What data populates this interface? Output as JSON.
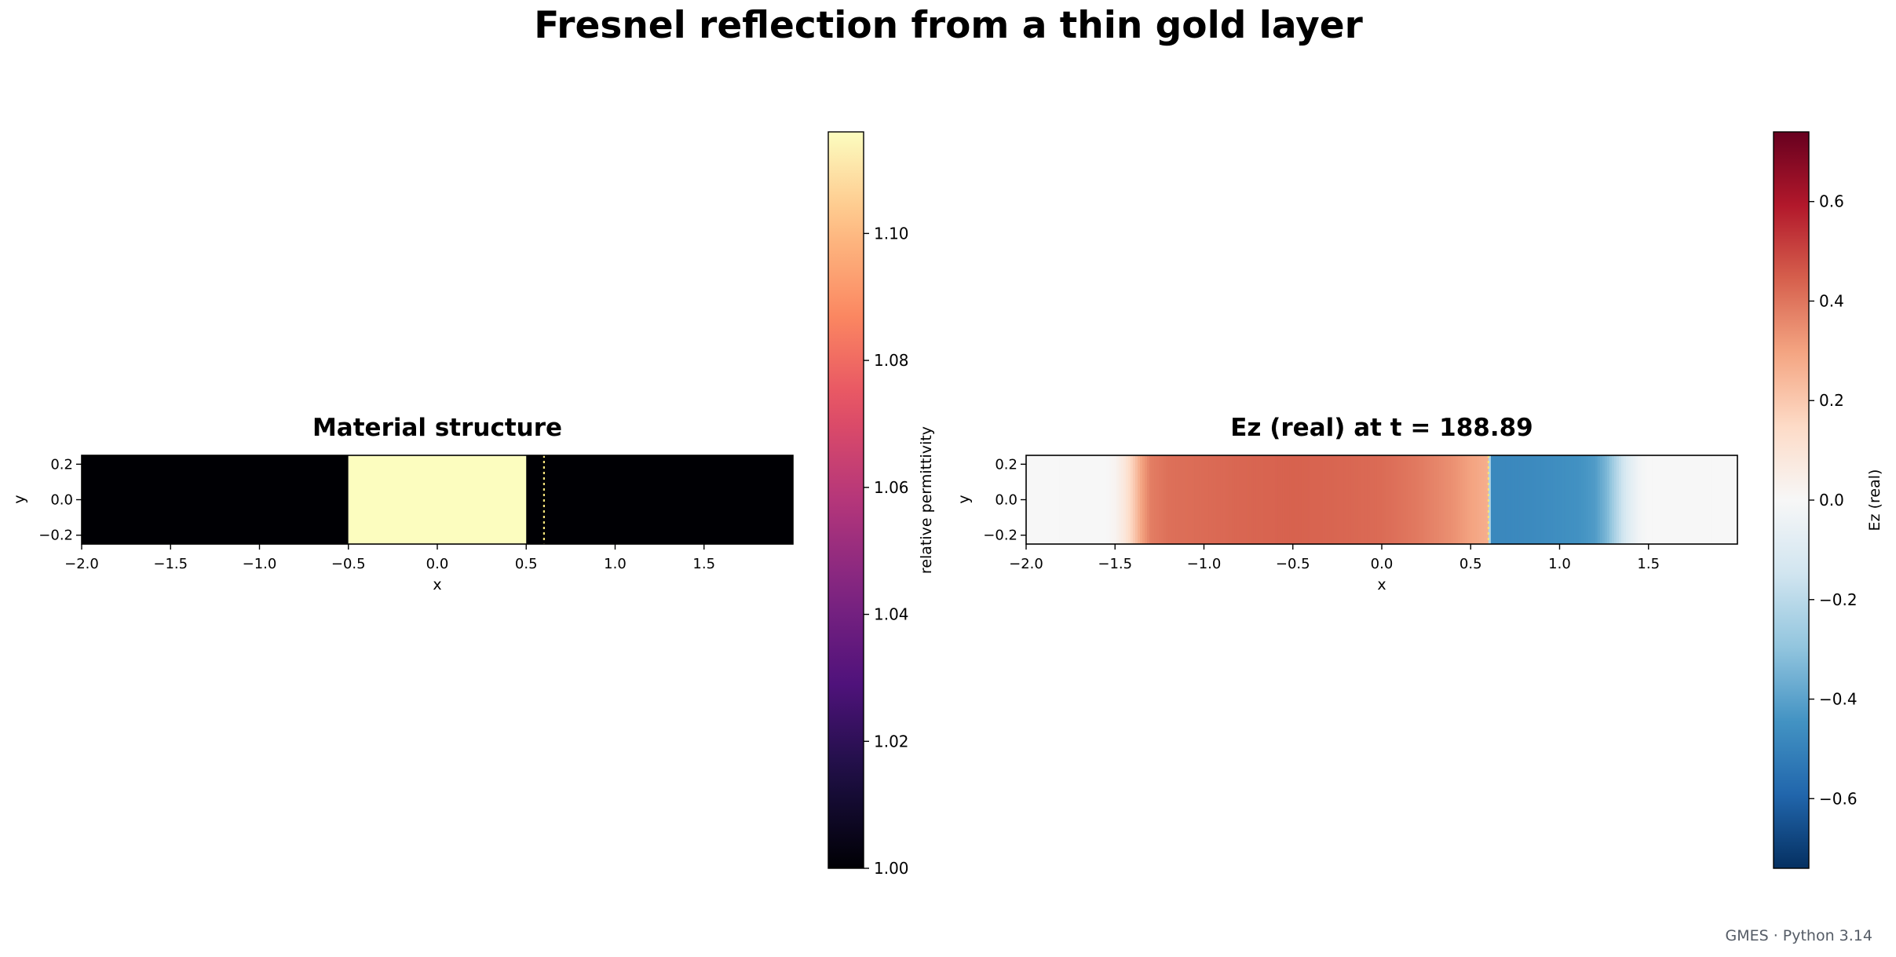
{
  "figure": {
    "title": "Fresnel reflection from a thin gold layer",
    "footer": "GMES · Python 3.14"
  },
  "chart_data": [
    {
      "type": "heatmap",
      "title": "Material structure",
      "xlabel": "x",
      "ylabel": "y",
      "xlim": [
        -2.0,
        2.0
      ],
      "ylim": [
        -0.25,
        0.25
      ],
      "xticks": [
        "−2.0",
        "−1.5",
        "−1.0",
        "−0.5",
        "0.0",
        "0.5",
        "1.0",
        "1.5"
      ],
      "xtick_values": [
        -2.0,
        -1.5,
        -1.0,
        -0.5,
        0.0,
        0.5,
        1.0,
        1.5
      ],
      "yticks": [
        "0.2",
        "0.0",
        "−0.2"
      ],
      "ytick_values": [
        0.2,
        0.0,
        -0.2
      ],
      "colormap": "magma",
      "regions": [
        {
          "x0": -2.0,
          "x1": -0.5,
          "value": 1.0
        },
        {
          "x0": -0.5,
          "x1": 0.5,
          "value": 1.116
        },
        {
          "x0": 0.5,
          "x1": 2.0,
          "value": 1.0
        }
      ],
      "marker_line_x": 0.6,
      "marker_line_style": "dotted",
      "marker_line_color": "#f5e27a",
      "colorbar": {
        "label": "relative permittivity",
        "range": [
          1.0,
          1.116
        ],
        "ticks": [
          "1.00",
          "1.02",
          "1.04",
          "1.06",
          "1.08",
          "1.10"
        ],
        "tick_values": [
          1.0,
          1.02,
          1.04,
          1.06,
          1.08,
          1.1
        ]
      }
    },
    {
      "type": "heatmap",
      "title": "Ez (real) at t = 188.89",
      "xlabel": "x",
      "ylabel": "y",
      "xlim": [
        -2.0,
        2.0
      ],
      "ylim": [
        -0.25,
        0.25
      ],
      "xticks": [
        "−2.0",
        "−1.5",
        "−1.0",
        "−0.5",
        "0.0",
        "0.5",
        "1.0",
        "1.5"
      ],
      "xtick_values": [
        -2.0,
        -1.5,
        -1.0,
        -0.5,
        0.0,
        0.5,
        1.0,
        1.5
      ],
      "yticks": [
        "0.2",
        "0.0",
        "−0.2"
      ],
      "ytick_values": [
        0.2,
        0.0,
        -0.2
      ],
      "colormap": "RdBu_r",
      "field_profile": {
        "x": [
          -2.0,
          -1.55,
          -1.5,
          -1.45,
          -1.4,
          -1.35,
          -1.3,
          -1.2,
          -1.0,
          -0.8,
          -0.5,
          -0.2,
          0.0,
          0.2,
          0.4,
          0.5,
          0.6,
          0.61,
          0.7,
          0.9,
          1.1,
          1.2,
          1.27,
          1.32,
          1.38,
          1.45,
          1.5,
          2.0
        ],
        "value": [
          0.0,
          0.0,
          0.02,
          0.08,
          0.18,
          0.3,
          0.38,
          0.41,
          0.42,
          0.43,
          0.44,
          0.43,
          0.42,
          0.39,
          0.34,
          0.3,
          0.27,
          -0.48,
          -0.48,
          -0.47,
          -0.45,
          -0.42,
          -0.33,
          -0.22,
          -0.1,
          -0.02,
          0.0,
          0.0
        ]
      },
      "marker_line_x": 0.6,
      "marker_line_style": "dotted",
      "marker_line_color": "#f5e27a",
      "colorbar": {
        "label": "Ez (real)",
        "range": [
          -0.74,
          0.74
        ],
        "ticks": [
          "−0.6",
          "−0.4",
          "−0.2",
          "0.0",
          "0.2",
          "0.4",
          "0.6"
        ],
        "tick_values": [
          -0.6,
          -0.4,
          -0.2,
          0.0,
          0.2,
          0.4,
          0.6
        ]
      }
    }
  ]
}
